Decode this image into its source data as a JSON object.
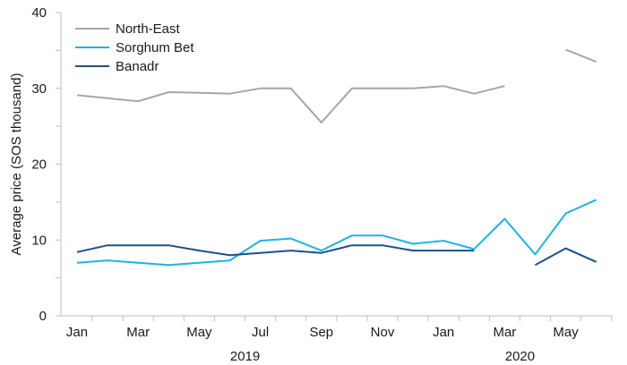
{
  "chart_data": {
    "type": "line",
    "title": "",
    "xlabel": "",
    "ylabel": "Average price (SOS thousand)",
    "ylim": [
      0,
      40
    ],
    "yticks": [
      0,
      10,
      20,
      30,
      40
    ],
    "x": [
      "Jan 2019",
      "Feb 2019",
      "Mar 2019",
      "Apr 2019",
      "May 2019",
      "Jun 2019",
      "Jul 2019",
      "Aug 2019",
      "Sep 2019",
      "Oct 2019",
      "Nov 2019",
      "Dec 2019",
      "Jan 2020",
      "Feb 2020",
      "Mar 2020",
      "Apr 2020",
      "May 2020",
      "Jun 2020"
    ],
    "xtick_labels": [
      "Jan",
      "",
      "Mar",
      "",
      "May",
      "",
      "Jul",
      "",
      "Sep",
      "",
      "Nov",
      "",
      "Jan",
      "",
      "Mar",
      "",
      "May",
      ""
    ],
    "year_labels": [
      {
        "label": "2019"
      },
      {
        "label": "2020"
      }
    ],
    "legend_position": "top-left",
    "grid": false,
    "series": [
      {
        "name": "North-East",
        "color": "#a6a6a6",
        "values": [
          29.1,
          28.7,
          28.3,
          29.5,
          29.4,
          29.3,
          30.0,
          30.0,
          25.5,
          30.0,
          30.0,
          30.0,
          30.3,
          29.3,
          30.3,
          null,
          35.1,
          33.5
        ]
      },
      {
        "name": "Sorghum Bet",
        "color": "#1fb2e6",
        "values": [
          7.0,
          7.3,
          7.0,
          6.7,
          7.0,
          7.3,
          9.9,
          10.2,
          8.6,
          10.6,
          10.6,
          9.5,
          9.9,
          8.8,
          12.8,
          8.1,
          13.5,
          15.3
        ]
      },
      {
        "name": "Banadr",
        "color": "#1f4e8c",
        "values": [
          8.4,
          9.3,
          9.3,
          9.3,
          8.6,
          8.0,
          8.3,
          8.6,
          8.3,
          9.3,
          9.3,
          8.6,
          8.6,
          8.6,
          null,
          6.7,
          8.9,
          7.1
        ]
      }
    ]
  }
}
